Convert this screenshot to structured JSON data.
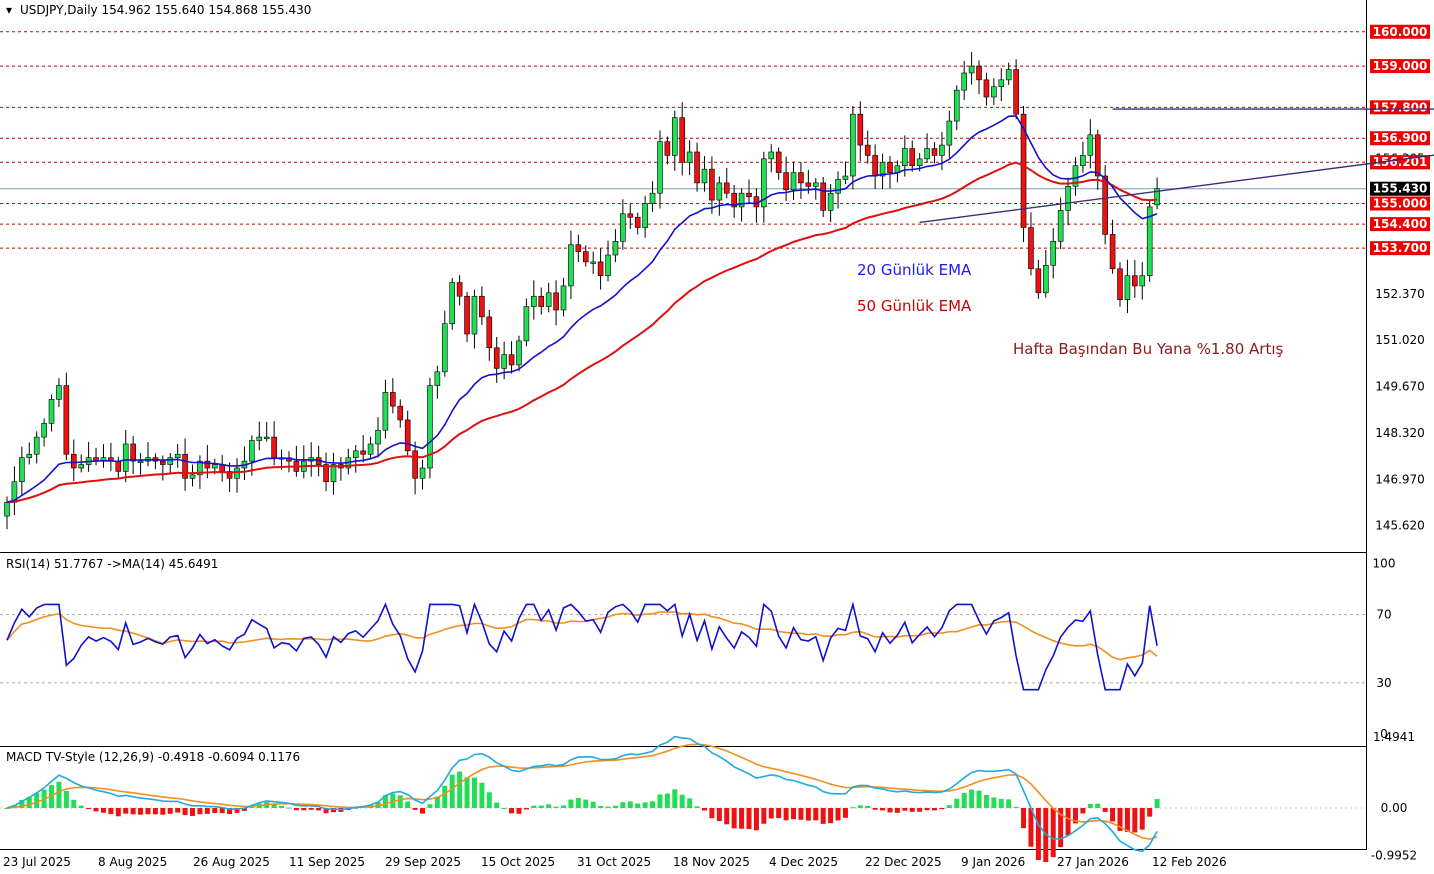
{
  "header": {
    "symbol_line": "USDJPY,Daily  154.962 155.640 154.868 155.430",
    "rsi_line": "RSI(14) 51.7767  ->MA(14) 45.6491",
    "macd_line": "MACD TV-Style (12,26,9) -0.4918 -0.6094 0.1176"
  },
  "annotations": {
    "ema20": "20 Günlük EMA",
    "ema50": "50 Günlük EMA",
    "weekly": "Hafta Başından Bu Yana %1.80 Artış"
  },
  "colors": {
    "bull": "#22dd55",
    "bear": "#ee1111",
    "ema20": "#1111cc",
    "ema50": "#dd1111",
    "rsi": "#1111cc",
    "rsi_ma": "#f09020",
    "macd": "#22aadd",
    "signal": "#f09020",
    "level_tag": "#ee0000",
    "current_tag": "#000000"
  },
  "chart_data": [
    {
      "type": "candlestick",
      "title": "USDJPY,Daily",
      "ohlc_header": [
        154.962,
        155.64,
        154.868,
        155.43
      ],
      "ylim": [
        145.0,
        160.1
      ],
      "y_ticks": [
        "145.620",
        "146.970",
        "148.320",
        "149.670",
        "151.020",
        "152.370"
      ],
      "x_ticks": [
        "23 Jul 2025",
        "8 Aug 2025",
        "26 Aug 2025",
        "11 Sep 2025",
        "29 Sep 2025",
        "15 Oct 2025",
        "31 Oct 2025",
        "18 Nov 2025",
        "4 Dec 2025",
        "22 Dec 2025",
        "9 Jan 2026",
        "27 Jan 2026",
        "12 Feb 2026"
      ],
      "levels": [
        {
          "label": "160.000",
          "value": 160.0
        },
        {
          "label": "159.000",
          "value": 159.0
        },
        {
          "label": "157.800",
          "value": 157.8
        },
        {
          "label": "156.900",
          "value": 156.9
        },
        {
          "label": "156.201",
          "value": 156.201
        },
        {
          "label": "155.000",
          "value": 155.0
        },
        {
          "label": "154.400",
          "value": 154.4
        },
        {
          "label": "153.700",
          "value": 153.7
        }
      ],
      "current_price": {
        "label": "155.430",
        "value": 155.43
      },
      "hidden_tick": {
        "label": "156.305",
        "value": 156.305
      },
      "trendlines": [
        {
          "x1": 149,
          "y1": 157.75,
          "x2": 208,
          "y2": 157.75
        },
        {
          "x1": 123,
          "y1": 154.45,
          "x2": 208,
          "y2": 156.85
        }
      ],
      "close": [
        146.3,
        146.9,
        147.6,
        147.7,
        148.2,
        148.6,
        149.3,
        149.7,
        147.7,
        147.3,
        147.4,
        147.6,
        147.5,
        147.6,
        147.5,
        147.2,
        148.0,
        147.5,
        147.5,
        147.6,
        147.5,
        147.4,
        147.6,
        147.7,
        147.0,
        147.1,
        147.5,
        147.3,
        147.4,
        147.2,
        147.0,
        147.3,
        147.5,
        148.1,
        148.2,
        148.2,
        147.6,
        147.6,
        147.5,
        147.2,
        147.5,
        147.6,
        147.4,
        146.9,
        147.4,
        147.3,
        147.6,
        147.8,
        147.7,
        148.0,
        148.4,
        149.5,
        149.1,
        148.7,
        147.8,
        147.0,
        147.3,
        149.7,
        150.1,
        151.5,
        152.7,
        152.3,
        151.2,
        152.3,
        151.7,
        150.8,
        150.2,
        150.6,
        150.3,
        151.0,
        152.0,
        152.3,
        152.0,
        152.4,
        151.9,
        152.6,
        153.8,
        153.6,
        153.3,
        153.3,
        152.9,
        153.5,
        153.9,
        154.7,
        154.6,
        154.3,
        155.0,
        155.3,
        156.8,
        156.4,
        157.5,
        156.2,
        156.5,
        155.6,
        156.0,
        155.1,
        155.6,
        155.3,
        154.9,
        155.3,
        155.2,
        154.9,
        156.3,
        156.5,
        155.9,
        155.4,
        155.9,
        155.6,
        155.5,
        155.6,
        154.8,
        155.3,
        155.7,
        155.8,
        157.6,
        156.7,
        156.4,
        155.8,
        156.2,
        155.9,
        156.1,
        156.6,
        156.1,
        156.3,
        156.6,
        156.4,
        156.7,
        157.4,
        158.3,
        158.8,
        159.0,
        158.6,
        158.1,
        158.4,
        158.6,
        158.9,
        157.6,
        154.3,
        153.1,
        152.4,
        153.2,
        153.9,
        154.8,
        155.5,
        156.1,
        156.4,
        157.0,
        155.8,
        154.1,
        153.1,
        152.2,
        152.9,
        152.6,
        152.9,
        154.9,
        155.43
      ],
      "ema20": [
        146.3,
        146.36,
        146.5,
        146.64,
        146.79,
        146.95,
        147.18,
        147.41,
        147.46,
        147.46,
        147.47,
        147.49,
        147.5,
        147.51,
        147.51,
        147.49,
        147.54,
        147.53,
        147.53,
        147.54,
        147.54,
        147.53,
        147.54,
        147.55,
        147.5,
        147.46,
        147.46,
        147.44,
        147.43,
        147.4,
        147.36,
        147.36,
        147.38,
        147.45,
        147.52,
        147.58,
        147.58,
        147.59,
        147.58,
        147.54,
        147.54,
        147.54,
        147.53,
        147.46,
        147.45,
        147.44,
        147.46,
        147.5,
        147.52,
        147.57,
        147.65,
        147.83,
        147.95,
        148.03,
        148.01,
        147.93,
        147.87,
        148.05,
        148.25,
        148.56,
        148.96,
        149.29,
        149.47,
        149.74,
        149.93,
        150.01,
        150.03,
        150.08,
        150.1,
        150.18,
        150.35,
        150.53,
        150.67,
        150.84,
        150.96,
        151.12,
        151.38,
        151.6,
        151.77,
        151.92,
        152.02,
        152.17,
        152.33,
        152.56,
        152.75,
        152.9,
        153.1,
        153.31,
        153.64,
        153.91,
        154.25,
        154.44,
        154.64,
        154.73,
        154.85,
        154.87,
        154.94,
        154.97,
        154.96,
        154.99,
        155.01,
        155.0,
        155.12,
        155.25,
        155.31,
        155.32,
        155.37,
        155.39,
        155.4,
        155.42,
        155.36,
        155.36,
        155.39,
        155.43,
        155.63,
        155.73,
        155.8,
        155.81,
        155.85,
        155.86,
        155.89,
        155.98,
        155.99,
        156.02,
        156.08,
        156.11,
        156.17,
        156.29,
        156.48,
        156.7,
        156.92,
        157.08,
        157.17,
        157.28,
        157.4,
        157.54,
        157.55,
        157.19,
        156.76,
        156.34,
        156.04,
        155.83,
        155.73,
        155.71,
        155.74,
        155.81,
        155.92,
        155.9,
        155.73,
        155.48,
        155.16,
        154.95,
        154.73,
        154.56,
        154.62,
        154.7
      ],
      "ema50": [
        146.3,
        146.32,
        146.37,
        146.43,
        146.5,
        146.58,
        146.68,
        146.8,
        146.84,
        146.86,
        146.88,
        146.91,
        146.93,
        146.96,
        146.98,
        146.99,
        147.03,
        147.05,
        147.07,
        147.09,
        147.11,
        147.12,
        147.14,
        147.16,
        147.15,
        147.15,
        147.16,
        147.17,
        147.18,
        147.18,
        147.17,
        147.18,
        147.19,
        147.23,
        147.27,
        147.31,
        147.32,
        147.33,
        147.34,
        147.34,
        147.35,
        147.36,
        147.36,
        147.35,
        147.35,
        147.35,
        147.36,
        147.38,
        147.39,
        147.41,
        147.45,
        147.53,
        147.59,
        147.63,
        147.64,
        147.62,
        147.61,
        147.69,
        147.78,
        147.93,
        148.12,
        148.29,
        148.4,
        148.55,
        148.67,
        148.75,
        148.81,
        148.88,
        148.94,
        149.02,
        149.14,
        149.27,
        149.38,
        149.5,
        149.6,
        149.72,
        149.89,
        150.04,
        150.18,
        150.31,
        150.42,
        150.55,
        150.69,
        150.86,
        151.01,
        151.15,
        151.31,
        151.47,
        151.68,
        151.87,
        152.1,
        152.27,
        152.45,
        152.59,
        152.74,
        152.84,
        152.95,
        153.05,
        153.13,
        153.22,
        153.31,
        153.38,
        153.5,
        153.62,
        153.71,
        153.79,
        153.88,
        153.95,
        154.01,
        154.08,
        154.11,
        154.16,
        154.23,
        154.29,
        154.42,
        154.51,
        154.59,
        154.64,
        154.7,
        154.75,
        154.8,
        154.87,
        154.92,
        154.97,
        155.03,
        155.08,
        155.14,
        155.23,
        155.35,
        155.48,
        155.61,
        155.73,
        155.82,
        155.92,
        156.02,
        156.13,
        156.19,
        156.1,
        155.97,
        155.82,
        155.71,
        155.63,
        155.58,
        155.58,
        155.6,
        155.63,
        155.68,
        155.69,
        155.63,
        155.53,
        155.4,
        155.3,
        155.2,
        155.11,
        155.1,
        155.11
      ]
    },
    {
      "type": "line",
      "title": "RSI(14)",
      "ylim": [
        0,
        100
      ],
      "y_ticks": [
        "100",
        "70",
        "30",
        "0"
      ],
      "levels": [
        70,
        30
      ],
      "series": [
        {
          "name": "RSI(14)",
          "last": 51.7767
        },
        {
          "name": "MA(14)",
          "last": 45.6491
        }
      ]
    },
    {
      "type": "bar",
      "title": "MACD TV-Style (12,26,9)",
      "ylim": [
        -1.25,
        1.7
      ],
      "y_ticks": [
        "1.4941",
        "0.00",
        "-0.9952"
      ],
      "series": [
        {
          "name": "MACD",
          "last": -0.4918
        },
        {
          "name": "Signal",
          "last": -0.6094
        },
        {
          "name": "Histogram",
          "last": 0.1176
        }
      ]
    }
  ]
}
